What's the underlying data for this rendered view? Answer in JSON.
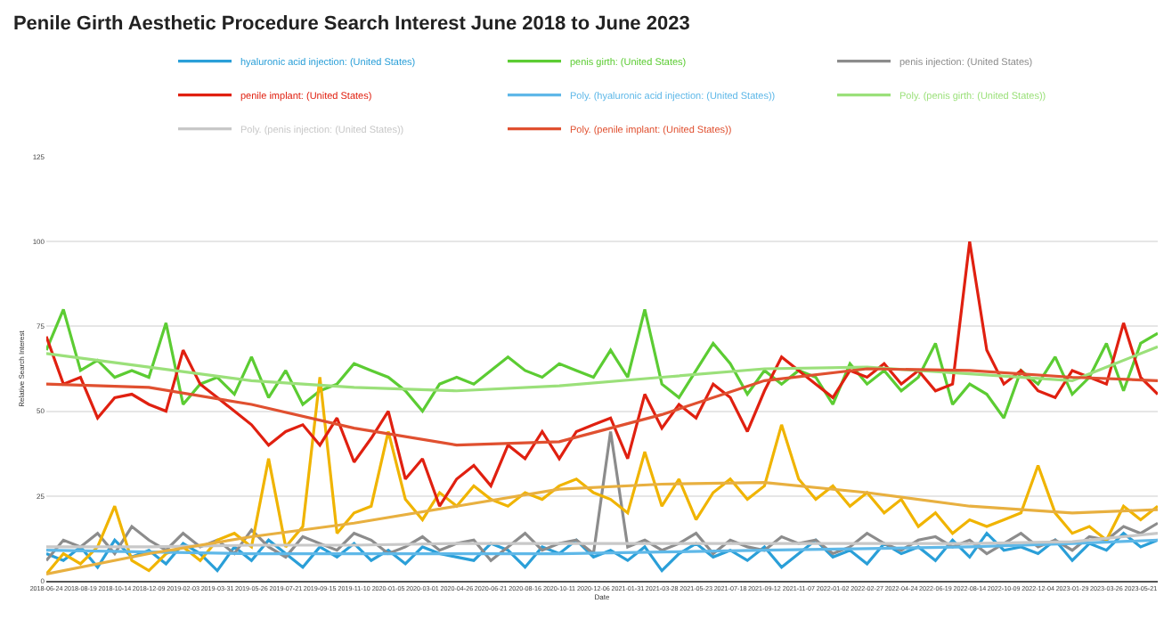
{
  "chart_data": {
    "type": "line",
    "title": "Penile Girth Aesthetic Procedure Search Interest June 2018 to June 2023",
    "xlabel": "Date",
    "ylabel": "Relative Search Interest",
    "x": [
      "2018-06-24",
      "2018-07-22",
      "2018-08-19",
      "2018-09-16",
      "2018-10-14",
      "2018-11-11",
      "2018-12-09",
      "2019-01-06",
      "2019-02-03",
      "2019-03-03",
      "2019-03-31",
      "2019-04-28",
      "2019-05-26",
      "2019-06-23",
      "2019-07-21",
      "2019-08-18",
      "2019-09-15",
      "2019-10-13",
      "2019-11-10",
      "2019-12-08",
      "2020-01-05",
      "2020-02-02",
      "2020-03-01",
      "2020-03-29",
      "2020-04-26",
      "2020-05-24",
      "2020-06-21",
      "2020-07-19",
      "2020-08-16",
      "2020-09-13",
      "2020-10-11",
      "2020-11-08",
      "2020-12-06",
      "2021-01-03",
      "2021-01-31",
      "2021-02-28",
      "2021-03-28",
      "2021-04-25",
      "2021-05-23",
      "2021-06-20",
      "2021-07-18",
      "2021-08-15",
      "2021-09-12",
      "2021-10-10",
      "2021-11-07",
      "2021-12-05",
      "2022-01-02",
      "2022-01-30",
      "2022-02-27",
      "2022-03-27",
      "2022-04-24",
      "2022-05-22",
      "2022-06-19",
      "2022-07-17",
      "2022-08-14",
      "2022-09-11",
      "2022-10-09",
      "2022-11-06",
      "2022-12-04",
      "2023-01-01",
      "2023-01-29",
      "2023-02-26",
      "2023-03-26",
      "2023-04-23",
      "2023-05-21",
      "2023-06-18"
    ],
    "series": [
      {
        "name": "hyaluronic acid injection: (United States)",
        "color": "#2a9fd8",
        "values": [
          8,
          6,
          10,
          4,
          12,
          7,
          9,
          5,
          11,
          8,
          3,
          10,
          6,
          12,
          8,
          4,
          10,
          7,
          11,
          6,
          9,
          5,
          10,
          8,
          7,
          6,
          11,
          9,
          4,
          10,
          8,
          12,
          7,
          9,
          6,
          10,
          3,
          8,
          11,
          7,
          9,
          6,
          10,
          4,
          8,
          12,
          7,
          9,
          5,
          11,
          8,
          10,
          6,
          12,
          7,
          14,
          9,
          10,
          8,
          12,
          6,
          11,
          9,
          14,
          10,
          12
        ]
      },
      {
        "name": "penis girth: (United States)",
        "color": "#5ccc33",
        "values": [
          68,
          80,
          62,
          65,
          60,
          62,
          60,
          76,
          52,
          58,
          60,
          55,
          66,
          54,
          62,
          52,
          56,
          58,
          64,
          62,
          60,
          56,
          50,
          58,
          60,
          58,
          62,
          66,
          62,
          60,
          64,
          62,
          60,
          68,
          60,
          80,
          58,
          54,
          62,
          70,
          64,
          55,
          62,
          58,
          62,
          60,
          52,
          64,
          58,
          62,
          56,
          60,
          70,
          52,
          58,
          55,
          48,
          62,
          58,
          66,
          55,
          60,
          70,
          56,
          70,
          73
        ]
      },
      {
        "name": "penis injection: (United States)",
        "color": "#8c8c8c",
        "values": [
          6,
          12,
          10,
          14,
          8,
          16,
          12,
          9,
          14,
          10,
          12,
          8,
          15,
          10,
          7,
          13,
          11,
          9,
          14,
          12,
          8,
          10,
          13,
          9,
          11,
          12,
          6,
          10,
          14,
          9,
          11,
          12,
          8,
          44,
          10,
          12,
          9,
          11,
          14,
          8,
          12,
          10,
          9,
          13,
          11,
          12,
          8,
          10,
          14,
          11,
          9,
          12,
          13,
          10,
          12,
          8,
          11,
          14,
          10,
          12,
          9,
          13,
          12,
          16,
          14,
          17
        ]
      },
      {
        "name": null,
        "color": "#f0b400",
        "values": [
          2,
          8,
          5,
          10,
          22,
          6,
          3,
          8,
          10,
          6,
          12,
          14,
          10,
          36,
          10,
          16,
          60,
          14,
          20,
          22,
          44,
          24,
          18,
          26,
          22,
          28,
          24,
          22,
          26,
          24,
          28,
          30,
          26,
          24,
          20,
          38,
          22,
          30,
          18,
          26,
          30,
          24,
          28,
          46,
          30,
          24,
          28,
          22,
          26,
          20,
          24,
          16,
          20,
          14,
          18,
          16,
          18,
          20,
          34,
          20,
          14,
          16,
          12,
          22,
          18,
          22
        ]
      },
      {
        "name": "penile implant: (United States)",
        "color": "#e02010",
        "values": [
          72,
          58,
          60,
          48,
          54,
          55,
          52,
          50,
          68,
          58,
          54,
          50,
          46,
          40,
          44,
          46,
          40,
          48,
          35,
          42,
          50,
          30,
          36,
          22,
          30,
          34,
          28,
          40,
          36,
          44,
          36,
          44,
          46,
          48,
          36,
          55,
          45,
          52,
          48,
          58,
          54,
          44,
          56,
          66,
          62,
          58,
          54,
          62,
          60,
          64,
          58,
          62,
          56,
          58,
          100,
          68,
          58,
          62,
          56,
          54,
          62,
          60,
          58,
          76,
          60,
          55
        ]
      },
      {
        "name": "Poly. (hyaluronic acid injection: (United States))",
        "color": "#5fb8e8",
        "x": [
          "2018-06-24",
          "2018-12-09",
          "2019-05-26",
          "2019-11-10",
          "2020-04-26",
          "2020-10-11",
          "2021-03-28",
          "2021-09-12",
          "2022-02-27",
          "2022-08-14",
          "2023-01-29",
          "2023-06-18"
        ],
        "values": [
          9,
          8.5,
          8,
          8,
          8,
          8,
          8.5,
          9,
          9.5,
          10,
          11,
          12
        ]
      },
      {
        "name": "Poly. (penis girth: (United States))",
        "color": "#9be07a",
        "x": [
          "2018-06-24",
          "2018-12-09",
          "2019-05-26",
          "2019-11-10",
          "2020-04-26",
          "2020-10-11",
          "2021-03-28",
          "2021-09-12",
          "2022-02-27",
          "2022-08-14",
          "2023-01-29",
          "2023-06-18"
        ],
        "values": [
          67,
          63,
          59,
          57,
          56,
          57.5,
          60,
          62.5,
          63,
          61,
          59,
          69
        ]
      },
      {
        "name": "Poly. (penis injection: (United States))",
        "color": "#c8c8c8",
        "x": [
          "2018-06-24",
          "2018-12-09",
          "2019-05-26",
          "2019-11-10",
          "2020-04-26",
          "2020-10-11",
          "2021-03-28",
          "2021-09-12",
          "2022-02-27",
          "2022-08-14",
          "2023-01-29",
          "2023-06-18"
        ],
        "values": [
          10,
          10,
          10.5,
          10.5,
          11,
          11,
          11,
          11,
          11,
          11,
          11.5,
          14
        ]
      },
      {
        "name": null,
        "color": "#e8b040",
        "x": [
          "2018-06-24",
          "2018-12-09",
          "2019-05-26",
          "2019-11-10",
          "2020-04-26",
          "2020-10-11",
          "2021-03-28",
          "2021-09-12",
          "2022-02-27",
          "2022-08-14",
          "2023-01-29",
          "2023-06-18"
        ],
        "values": [
          2,
          8,
          13,
          17,
          22,
          27,
          28.5,
          29,
          26,
          22,
          20,
          21
        ]
      },
      {
        "name": "Poly. (penile implant: (United States))",
        "color": "#e05030",
        "x": [
          "2018-06-24",
          "2018-12-09",
          "2019-05-26",
          "2019-11-10",
          "2020-04-26",
          "2020-10-11",
          "2021-03-28",
          "2021-09-12",
          "2022-02-27",
          "2022-08-14",
          "2023-01-29",
          "2023-06-18"
        ],
        "values": [
          58,
          57,
          52,
          45,
          40,
          41,
          49,
          59,
          62.5,
          62,
          60,
          59
        ]
      }
    ],
    "xlim": [
      "2018-06-24",
      "2023-06-18"
    ],
    "xticks": [
      {
        "value": "2018-06-24",
        "label": "2018-06-24"
      },
      {
        "value": "2018-08-19",
        "label": "2018-08-19"
      },
      {
        "value": "2018-10-14",
        "label": "2018-10-14"
      },
      {
        "value": "2018-12-09",
        "label": "2018-12-09"
      },
      {
        "value": "2019-02-03",
        "label": "2019-02-03"
      },
      {
        "value": "2019-03-31",
        "label": "2019-03-31"
      },
      {
        "value": "2019-05-26",
        "label": "2019-05-26"
      },
      {
        "value": "2019-07-21",
        "label": "2019-07-21"
      },
      {
        "value": "2019-09-15",
        "label": "2019-09-15"
      },
      {
        "value": "2019-11-10",
        "label": "2019-11-10"
      },
      {
        "value": "2020-01-05",
        "label": "2020-01-05"
      },
      {
        "value": "2020-03-01",
        "label": "2020-03-01"
      },
      {
        "value": "2020-04-26",
        "label": "2020-04-26"
      },
      {
        "value": "2020-06-21",
        "label": "2020-06-21"
      },
      {
        "value": "2020-08-16",
        "label": "2020-08-16"
      },
      {
        "value": "2020-10-11",
        "label": "2020-10-11"
      },
      {
        "value": "2020-12-06",
        "label": "2020-12-06"
      },
      {
        "value": "2021-01-31",
        "label": "2021-01-31"
      },
      {
        "value": "2021-03-28",
        "label": "2021-03-28"
      },
      {
        "value": "2021-05-23",
        "label": "2021-05-23"
      },
      {
        "value": "2021-07-18",
        "label": "2021-07-18"
      },
      {
        "value": "2021-09-12",
        "label": "2021-09-12"
      },
      {
        "value": "2021-11-07",
        "label": "2021-11-07"
      },
      {
        "value": "2022-01-02",
        "label": "2022-01-02"
      },
      {
        "value": "2022-02-27",
        "label": "2022-02-27"
      },
      {
        "value": "2022-04-24",
        "label": "2022-04-24"
      },
      {
        "value": "2022-06-19",
        "label": "2022-06-19"
      },
      {
        "value": "2022-08-14",
        "label": "2022-08-14"
      },
      {
        "value": "2022-10-09",
        "label": "2022-10-09"
      },
      {
        "value": "2022-12-04",
        "label": "2022-12-04"
      },
      {
        "value": "2023-01-29",
        "label": "2023-01-29"
      },
      {
        "value": "2023-03-26",
        "label": "2023-03-26"
      },
      {
        "value": "2023-05-21",
        "label": "2023-05-21"
      }
    ],
    "ylim": [
      0,
      125
    ],
    "yticks": [
      0,
      25,
      50,
      75,
      100,
      125
    ],
    "grid": "y",
    "legend": "top right",
    "marker": "none",
    "line_style": "solid"
  }
}
